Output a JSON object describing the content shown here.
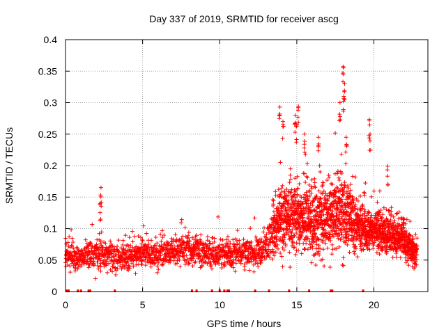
{
  "chart_data": {
    "type": "scatter",
    "title": "Day 337 of 2019, SRMTID for receiver ascg",
    "xlabel": "GPS time / hours",
    "ylabel": "SRMTID / TECUs",
    "xlim": [
      0,
      23.5
    ],
    "ylim": [
      0,
      0.4
    ],
    "xticks": [
      0,
      5,
      10,
      15,
      20
    ],
    "yticks": [
      0,
      0.05,
      0.1,
      0.15,
      0.2,
      0.25,
      0.3,
      0.35,
      0.4
    ],
    "ytick_labels": [
      "0",
      "0.05",
      "0.1",
      "0.15",
      "0.2",
      "0.25",
      "0.3",
      "0.35",
      "0.4"
    ],
    "grid": true,
    "marker": "+",
    "marker_color": "#ff0000",
    "series": [
      {
        "name": "SRMTID",
        "sampling_interval_hours": 0.01,
        "envelope_x": [
          0,
          1,
          2,
          3,
          4,
          5,
          6,
          7,
          8,
          9,
          10,
          11,
          12,
          13,
          13.5,
          14,
          15,
          16,
          17,
          18,
          19,
          20,
          21,
          22,
          22.8
        ],
        "median_y": [
          0.055,
          0.055,
          0.06,
          0.055,
          0.055,
          0.06,
          0.06,
          0.065,
          0.065,
          0.06,
          0.06,
          0.06,
          0.06,
          0.07,
          0.1,
          0.12,
          0.12,
          0.11,
          0.12,
          0.13,
          0.1,
          0.1,
          0.09,
          0.08,
          0.06
        ],
        "spread_y": [
          0.02,
          0.02,
          0.025,
          0.02,
          0.02,
          0.02,
          0.02,
          0.02,
          0.02,
          0.02,
          0.02,
          0.02,
          0.02,
          0.025,
          0.04,
          0.05,
          0.05,
          0.045,
          0.05,
          0.055,
          0.035,
          0.03,
          0.03,
          0.025,
          0.02
        ],
        "spikes": [
          {
            "x": 2.3,
            "y": 0.165
          },
          {
            "x": 2.25,
            "y": 0.14
          },
          {
            "x": 13.9,
            "y": 0.293
          },
          {
            "x": 14.1,
            "y": 0.27
          },
          {
            "x": 14.9,
            "y": 0.28
          },
          {
            "x": 15.0,
            "y": 0.265
          },
          {
            "x": 15.1,
            "y": 0.294
          },
          {
            "x": 15.5,
            "y": 0.25
          },
          {
            "x": 16.4,
            "y": 0.245
          },
          {
            "x": 18.0,
            "y": 0.357
          },
          {
            "x": 18.1,
            "y": 0.33
          },
          {
            "x": 18.05,
            "y": 0.31
          },
          {
            "x": 17.8,
            "y": 0.3
          },
          {
            "x": 18.2,
            "y": 0.245
          },
          {
            "x": 19.7,
            "y": 0.273
          },
          {
            "x": 19.75,
            "y": 0.25
          },
          {
            "x": 20.9,
            "y": 0.199
          }
        ],
        "gap_markers_x": [
          0.1,
          0.2,
          0.8,
          1.0,
          1.5,
          1.6,
          3.2,
          8.2,
          8.5,
          9.5,
          10.0,
          10.3,
          10.5,
          10.6,
          12.3,
          13.2,
          14.5,
          15.8,
          17.2,
          17.3,
          19.3
        ]
      }
    ]
  }
}
